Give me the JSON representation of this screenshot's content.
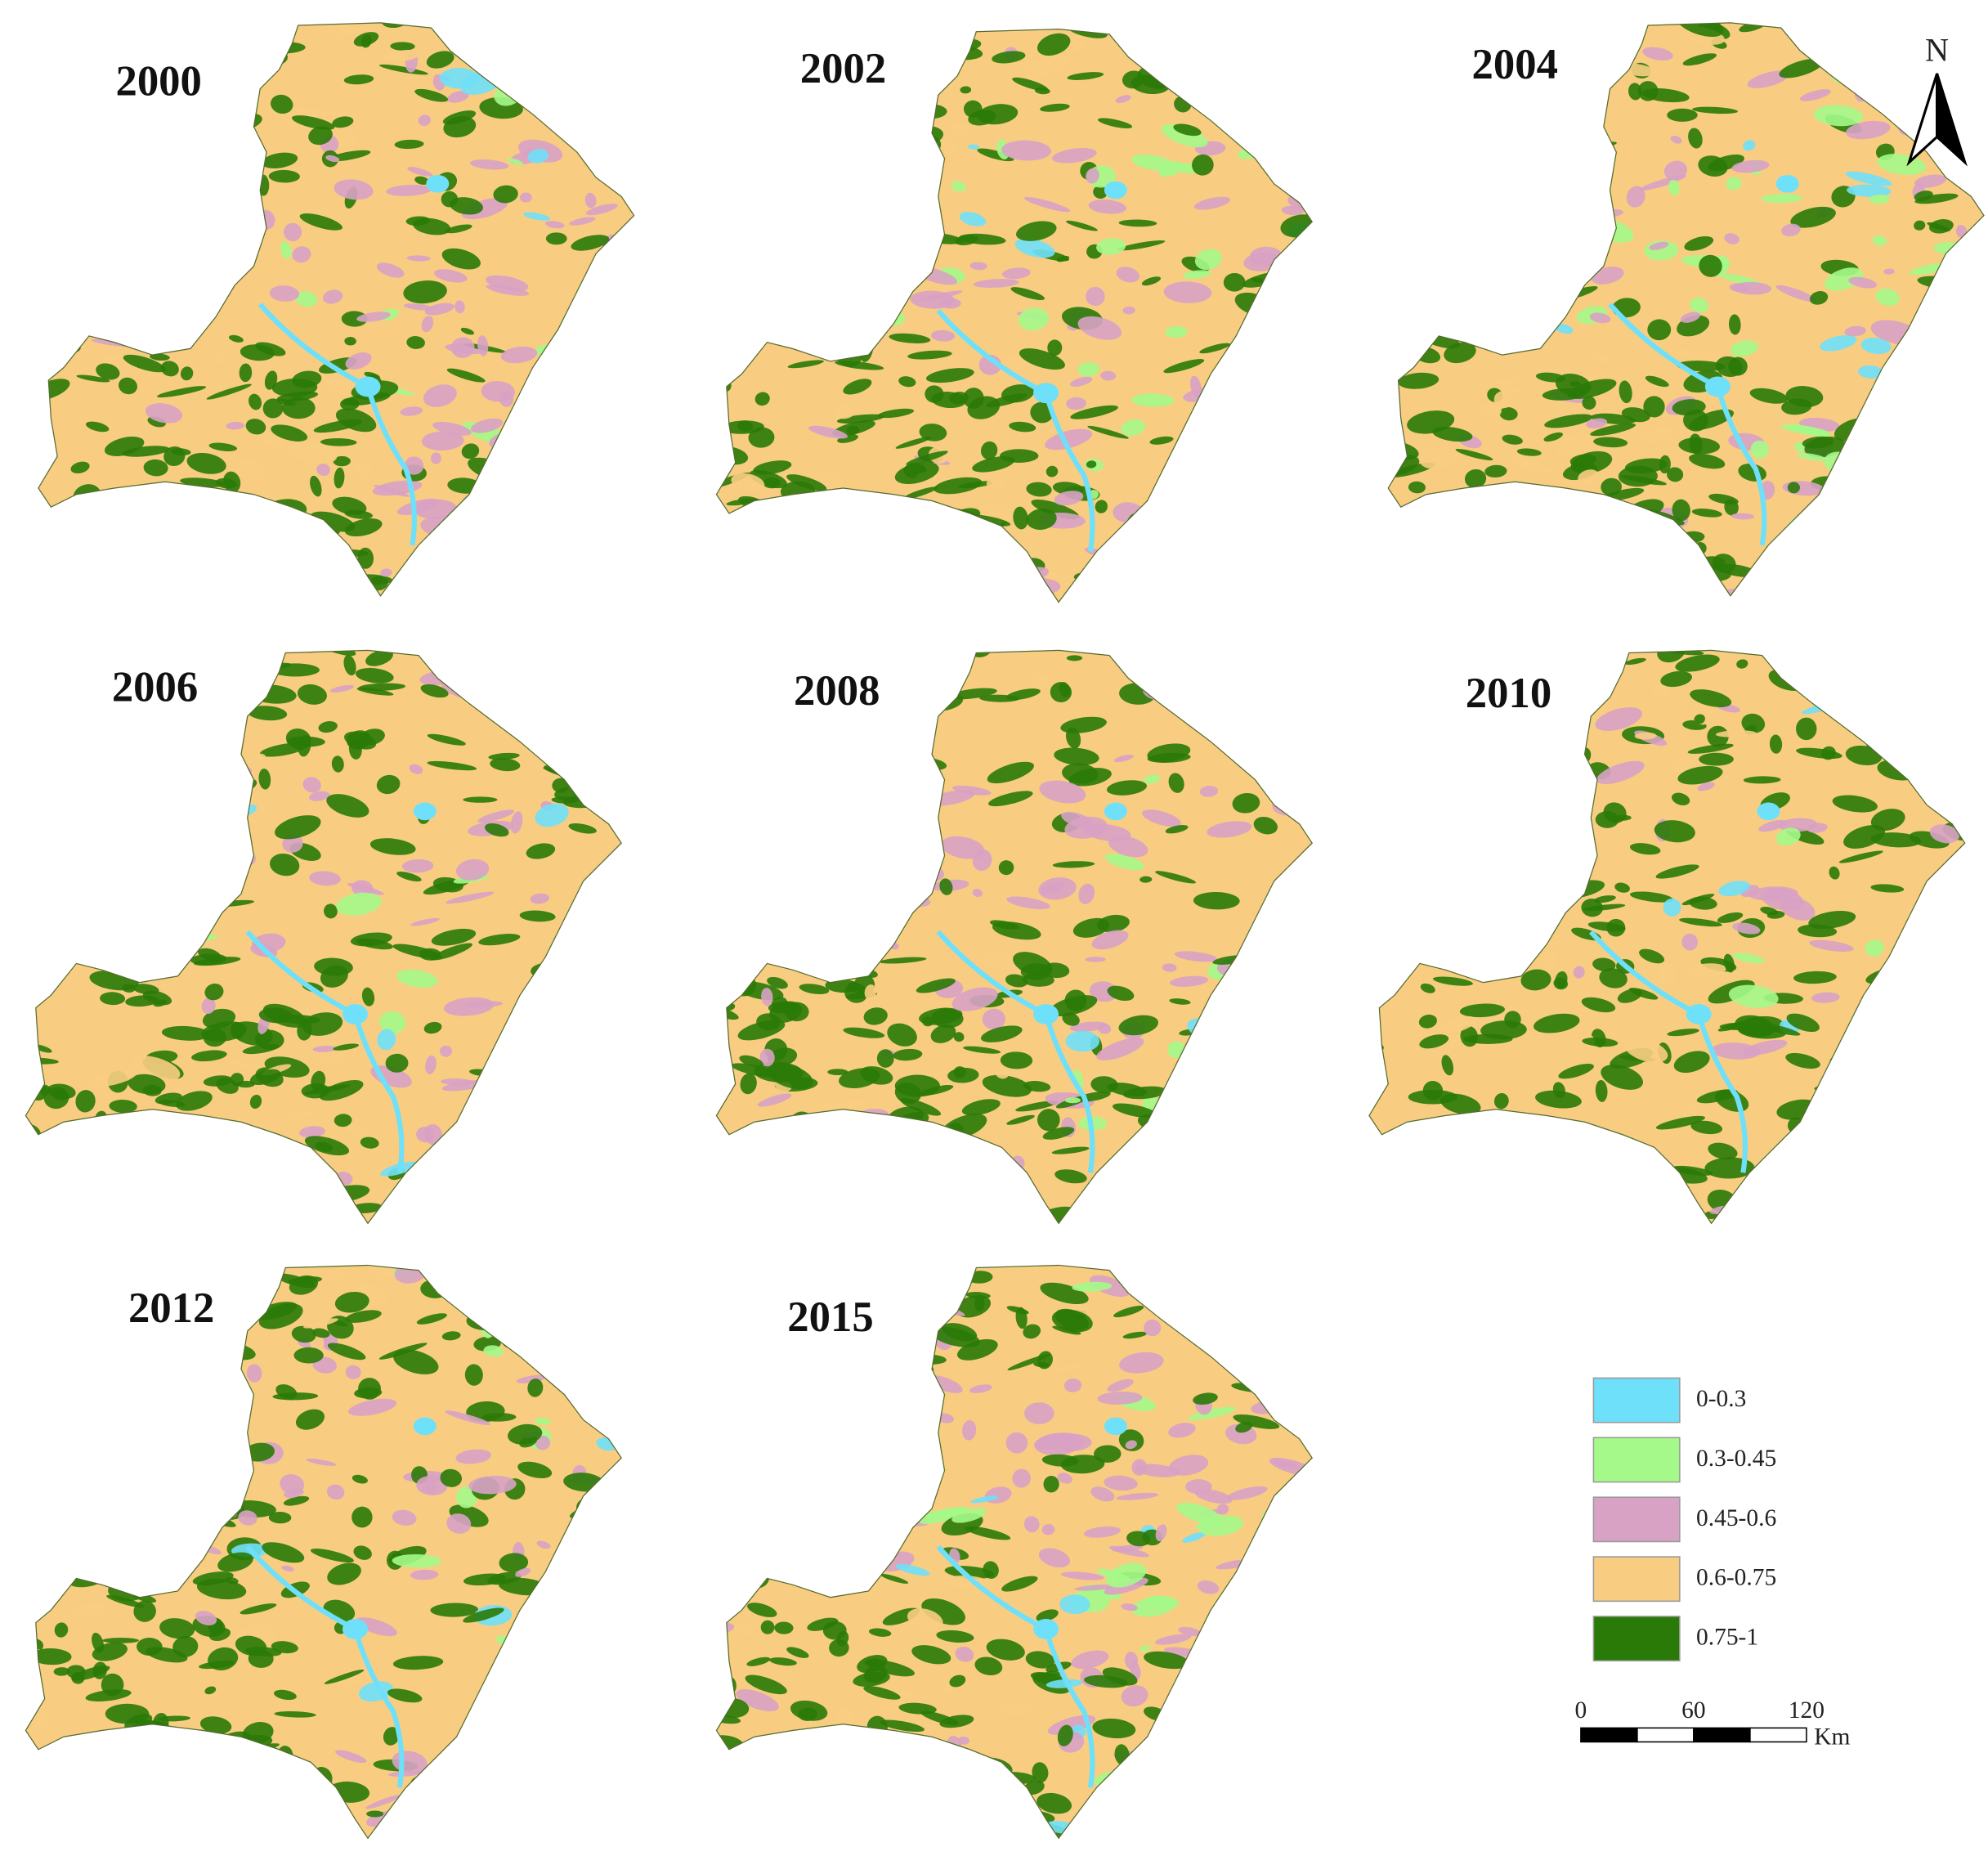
{
  "maps": [
    {
      "label": "2000"
    },
    {
      "label": "2002"
    },
    {
      "label": "2004"
    },
    {
      "label": "2006"
    },
    {
      "label": "2008"
    },
    {
      "label": "2010"
    },
    {
      "label": "2012"
    },
    {
      "label": "2015"
    }
  ],
  "legend": {
    "items": [
      {
        "label": "0-0.3",
        "color": "#6fe0fa"
      },
      {
        "label": "0.3-0.45",
        "color": "#a4f98a"
      },
      {
        "label": "0.45-0.6",
        "color": "#d8a2c4"
      },
      {
        "label": "0.6-0.75",
        "color": "#f8cd82"
      },
      {
        "label": "0.75-1",
        "color": "#2a7a08"
      }
    ]
  },
  "scale_bar": {
    "ticks": [
      0,
      60,
      120
    ],
    "unit": "Km"
  },
  "north_arrow": {
    "label": "N"
  }
}
